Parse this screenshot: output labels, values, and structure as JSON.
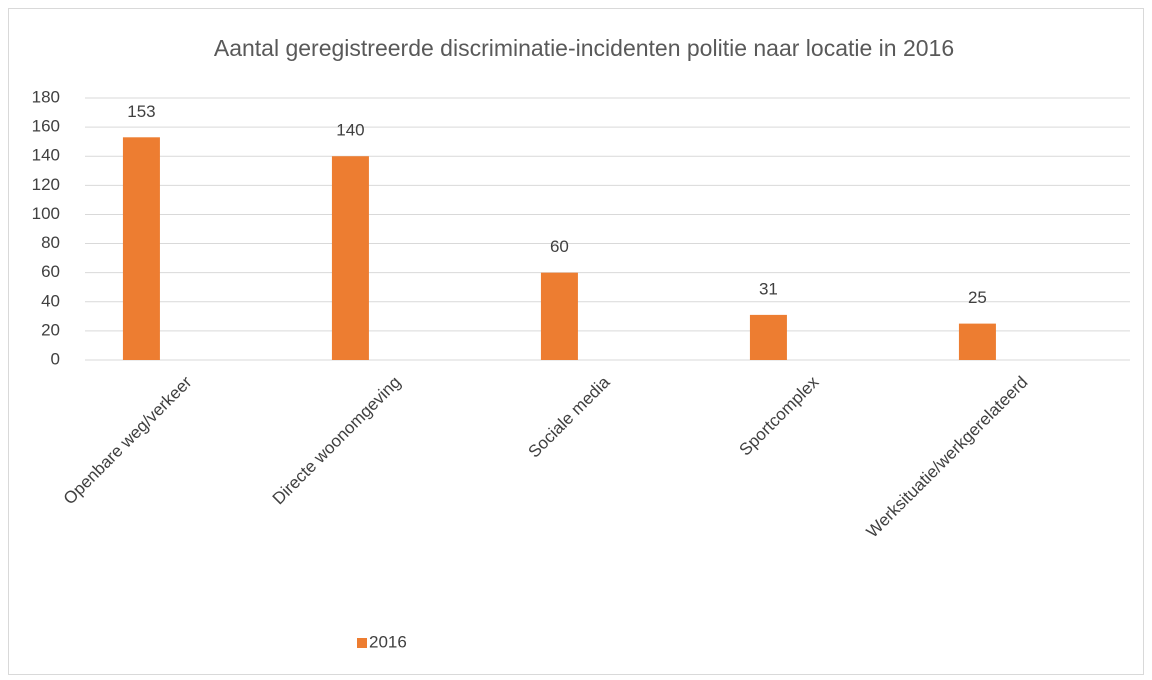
{
  "chart_data": {
    "type": "bar",
    "title": "Aantal geregistreerde discriminatie-incidenten politie naar locatie in 2016",
    "categories": [
      "Openbare weg/verkeer",
      "Directe woonomgeving",
      "Sociale media",
      "Sportcomplex",
      "Werksituatie/werkgerelateerd"
    ],
    "series": [
      {
        "name": "2016",
        "color": "#ed7d31",
        "values": [
          153,
          140,
          60,
          31,
          25
        ]
      }
    ],
    "ylim": [
      0,
      180
    ],
    "yticks": [
      0,
      20,
      40,
      60,
      80,
      100,
      120,
      140,
      160,
      180
    ],
    "grid": true,
    "legend": "bottom"
  }
}
